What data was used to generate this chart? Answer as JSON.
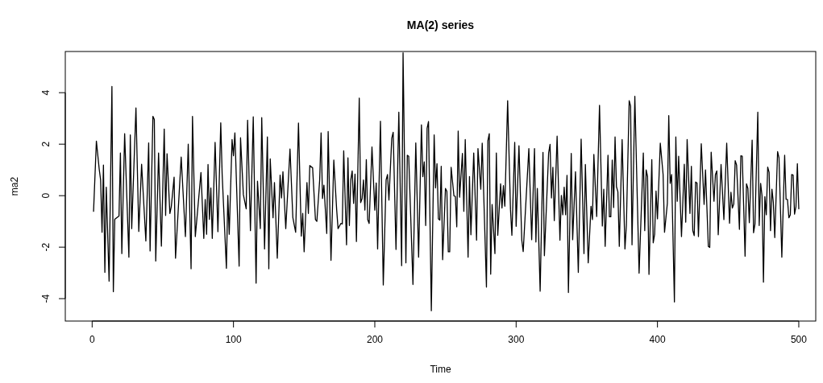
{
  "chart_data": {
    "type": "line",
    "title": "MA(2) series",
    "xlabel": "Time",
    "ylabel": "ma2",
    "color": "#000000",
    "xlim": [
      -19,
      512
    ],
    "ylim": [
      -4.87,
      5.6
    ],
    "xticks": [
      0,
      100,
      200,
      300,
      400,
      500
    ],
    "yticks": [
      -4,
      -2,
      0,
      2,
      4
    ],
    "x": [
      1,
      3,
      5,
      6,
      7,
      8,
      9,
      10,
      12,
      14,
      15,
      16,
      19,
      20,
      21,
      23,
      26,
      27,
      28,
      31,
      33,
      35,
      38,
      39,
      40,
      41,
      43,
      44,
      45,
      47,
      49,
      51,
      52,
      53,
      55,
      56,
      58,
      59,
      63,
      66,
      68,
      70,
      71,
      73,
      77,
      79,
      80,
      81,
      82,
      83,
      84,
      85,
      87,
      89,
      91,
      92,
      95,
      96,
      97,
      99,
      100,
      101,
      104,
      105,
      107,
      109,
      110,
      112,
      114,
      116,
      117,
      119,
      120,
      122,
      124,
      125,
      126,
      128,
      129,
      131,
      133,
      134,
      135,
      137,
      140,
      142,
      143,
      144,
      146,
      148,
      149,
      150,
      152,
      153,
      154,
      156,
      158,
      159,
      161,
      162,
      163,
      164,
      166,
      167,
      169,
      171,
      173,
      174,
      176,
      177,
      178,
      180,
      181,
      182,
      183,
      184,
      185,
      186,
      187,
      189,
      190,
      191,
      192,
      193,
      194,
      195,
      196,
      198,
      200,
      201,
      202,
      204,
      206,
      208,
      209,
      210,
      212,
      213,
      215,
      217,
      219,
      220,
      222,
      223,
      224,
      227,
      229,
      231,
      233,
      234,
      235,
      236,
      237,
      238,
      240,
      242,
      243,
      244,
      245,
      246,
      247,
      248,
      250,
      251,
      252,
      253,
      254,
      256,
      257,
      258,
      259,
      260,
      262,
      263,
      264,
      266,
      267,
      268,
      270,
      272,
      273,
      275,
      276,
      279,
      280,
      281,
      282,
      283,
      285,
      286,
      287,
      289,
      290,
      291,
      292,
      294,
      296,
      297,
      299,
      300,
      302,
      304,
      305,
      309,
      311,
      313,
      314,
      315,
      317,
      319,
      320,
      323,
      324,
      325,
      326,
      327,
      329,
      331,
      332,
      333,
      334,
      335,
      336,
      337,
      339,
      340,
      342,
      344,
      346,
      348,
      349,
      351,
      353,
      354,
      355,
      357,
      359,
      361,
      362,
      363,
      365,
      366,
      367,
      368,
      369,
      370,
      371,
      372,
      373,
      375,
      377,
      378,
      380,
      381,
      382,
      384,
      387,
      390,
      391,
      392,
      393,
      394,
      396,
      397,
      398,
      399,
      400,
      402,
      404,
      405,
      407,
      408,
      409,
      410,
      412,
      413,
      414,
      415,
      417,
      419,
      420,
      421,
      423,
      424,
      425,
      426,
      427,
      428,
      429,
      431,
      433,
      434,
      436,
      437,
      438,
      440,
      441,
      442,
      443,
      445,
      447,
      449,
      451,
      452,
      453,
      454,
      455,
      456,
      458,
      459,
      460,
      462,
      463,
      464,
      465,
      467,
      468,
      469,
      471,
      472,
      473,
      474,
      475,
      476,
      477,
      478,
      479,
      480,
      481,
      482,
      483,
      485,
      486,
      488,
      490,
      491,
      492,
      493,
      494,
      495,
      496,
      497,
      498,
      499,
      500
    ],
    "values": [
      -0.61,
      2.12,
      1.03,
      0.61,
      -1.42,
      1.19,
      -2.98,
      0.33,
      -3.32,
      4.24,
      -3.73,
      -0.92,
      -0.79,
      1.66,
      -2.25,
      2.41,
      -2.39,
      2.36,
      -1.28,
      3.41,
      -1.39,
      1.22,
      -1.76,
      0.11,
      2.05,
      -2.15,
      3.08,
      2.96,
      -2.54,
      1.66,
      -1.96,
      2.59,
      -0.77,
      1.63,
      -0.69,
      -0.43,
      0.72,
      -2.43,
      1.5,
      -1.59,
      2.0,
      -2.84,
      3.08,
      -1.59,
      0.9,
      -1.66,
      -0.15,
      -1.5,
      1.21,
      -0.92,
      0.3,
      -1.66,
      2.07,
      -1.4,
      2.83,
      0.82,
      -2.82,
      0.01,
      -1.5,
      2.18,
      1.55,
      2.44,
      -2.74,
      2.25,
      0.04,
      -0.51,
      2.93,
      -1.36,
      3.06,
      -3.4,
      0.56,
      -1.28,
      3.03,
      -2.07,
      2.28,
      -2.84,
      1.43,
      -0.86,
      0.51,
      -2.43,
      0.8,
      -0.09,
      0.93,
      -1.28,
      1.81,
      -0.84,
      -1.14,
      -1.42,
      2.82,
      -1.57,
      -0.69,
      -2.18,
      0.51,
      -0.69,
      1.17,
      1.08,
      -0.93,
      -1.0,
      0.61,
      2.44,
      -0.11,
      0.41,
      -1.47,
      2.49,
      -2.51,
      1.38,
      -0.53,
      -1.28,
      -1.08,
      -1.1,
      1.74,
      -1.91,
      1.47,
      -1.16,
      0.61,
      0.96,
      -0.3,
      0.84,
      -1.78,
      3.79,
      -0.27,
      -0.11,
      0.61,
      -0.56,
      1.4,
      -0.93,
      -1.08,
      1.89,
      -0.56,
      0.49,
      -2.07,
      2.89,
      -3.47,
      0.61,
      0.82,
      -0.17,
      2.23,
      2.46,
      -2.09,
      3.24,
      -2.72,
      5.55,
      -2.61,
      1.57,
      1.53,
      -3.45,
      2.05,
      -2.39,
      2.75,
      0.74,
      1.31,
      -1.16,
      2.61,
      2.88,
      -4.47,
      2.36,
      0.3,
      1.24,
      -0.9,
      -0.95,
      1.14,
      -2.49,
      0.28,
      0.17,
      -2.18,
      -2.18,
      1.1,
      -0.01,
      -0.03,
      -1.21,
      2.51,
      -0.06,
      1.64,
      -0.61,
      2.18,
      -2.39,
      0.74,
      -1.52,
      1.66,
      -1.73,
      1.83,
      0.25,
      2.04,
      -3.55,
      2.13,
      2.41,
      -3.05,
      -0.34,
      -2.25,
      1.66,
      -1.54,
      0.46,
      -0.48,
      0.39,
      -0.41,
      3.69,
      -0.53,
      -1.54,
      2.07,
      -1.19,
      1.94,
      -1.73,
      -2.17,
      1.83,
      -1.71,
      1.83,
      -1.8,
      0.28,
      -3.71,
      1.68,
      -2.33,
      1.66,
      1.99,
      -0.09,
      1.1,
      -0.97,
      2.31,
      -1.73,
      0.01,
      -0.74,
      0.33,
      -0.74,
      0.79,
      -3.76,
      1.64,
      -1.71,
      0.93,
      -2.98,
      2.2,
      -2.25,
      1.21,
      -2.61,
      -0.41,
      -0.93,
      1.6,
      -0.81,
      3.51,
      -1.18,
      0.25,
      -1.97,
      1.57,
      -0.82,
      -0.82,
      1.38,
      -0.46,
      2.28,
      0.35,
      0.15,
      -1.97,
      2.18,
      -2.07,
      -1.16,
      3.69,
      3.48,
      -1.91,
      3.86,
      -3.01,
      1.66,
      -1.36,
      1.0,
      0.74,
      -3.06,
      1.4,
      -1.83,
      -1.5,
      0.18,
      -0.9,
      2.04,
      0.82,
      -1.42,
      -0.3,
      3.11,
      0.48,
      0.82,
      -4.13,
      2.28,
      -0.22,
      1.53,
      -1.59,
      1.22,
      -1.03,
      2.18,
      -0.69,
      1.14,
      -1.36,
      -1.55,
      0.53,
      0.49,
      -1.59,
      2.02,
      -0.34,
      1.0,
      -1.97,
      -2.01,
      1.69,
      -0.22,
      0.82,
      0.96,
      -1.52,
      1.21,
      -0.93,
      2.04,
      -1.07,
      0.13,
      -0.48,
      -0.32,
      1.36,
      1.19,
      -1.31,
      1.55,
      1.53,
      -2.35,
      0.46,
      0.28,
      -1.05,
      2.16,
      -1.44,
      -1.1,
      3.24,
      -1.16,
      0.48,
      -0.01,
      -3.36,
      -0.04,
      -0.74,
      1.11,
      0.91,
      -1.36,
      0.25,
      -0.27,
      -1.63,
      1.71,
      1.47,
      -2.39,
      1.57,
      -0.14,
      -0.15,
      -0.86,
      -0.74,
      0.82,
      0.8,
      -0.72,
      -0.43,
      1.24,
      -0.51
    ]
  }
}
